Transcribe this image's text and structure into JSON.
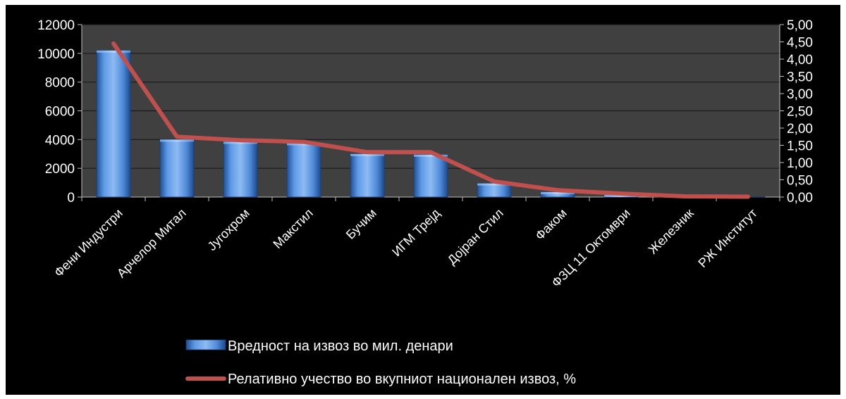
{
  "chart_data": {
    "type": "bar",
    "categories": [
      "Фени Индустри",
      "Арчелор Митал",
      "Југохром",
      "Макстил",
      "Бучим",
      "ИГМ Трејд",
      "Дојран Стил",
      "Факом",
      "ФЗЦ 11 Октомври",
      "Железник",
      "РЖ Институт"
    ],
    "series": [
      {
        "name": "Вредност на извоз во мил. денари",
        "type": "bar",
        "axis": "left",
        "color": "#4a86d6",
        "values": [
          10200,
          4000,
          3850,
          3750,
          3000,
          2950,
          950,
          350,
          150,
          50,
          20
        ]
      },
      {
        "name": "Релативно учество во вкупниот национален извоз, %",
        "type": "line",
        "axis": "right",
        "color": "#c0504d",
        "values": [
          4.45,
          1.75,
          1.65,
          1.6,
          1.3,
          1.3,
          0.45,
          0.2,
          0.1,
          0.02,
          0.01
        ]
      }
    ],
    "ylim": [
      0,
      12000
    ],
    "yticks": [
      "0",
      "2000",
      "4000",
      "6000",
      "8000",
      "10000",
      "12000"
    ],
    "y2lim": [
      0,
      5
    ],
    "y2ticks": [
      "0,00",
      "0,50",
      "1,00",
      "1,50",
      "2,00",
      "2,50",
      "3,00",
      "3,50",
      "4,00",
      "4,50",
      "5,00"
    ],
    "plot_background": "#404040",
    "grid": true,
    "legend_position": "bottom"
  }
}
